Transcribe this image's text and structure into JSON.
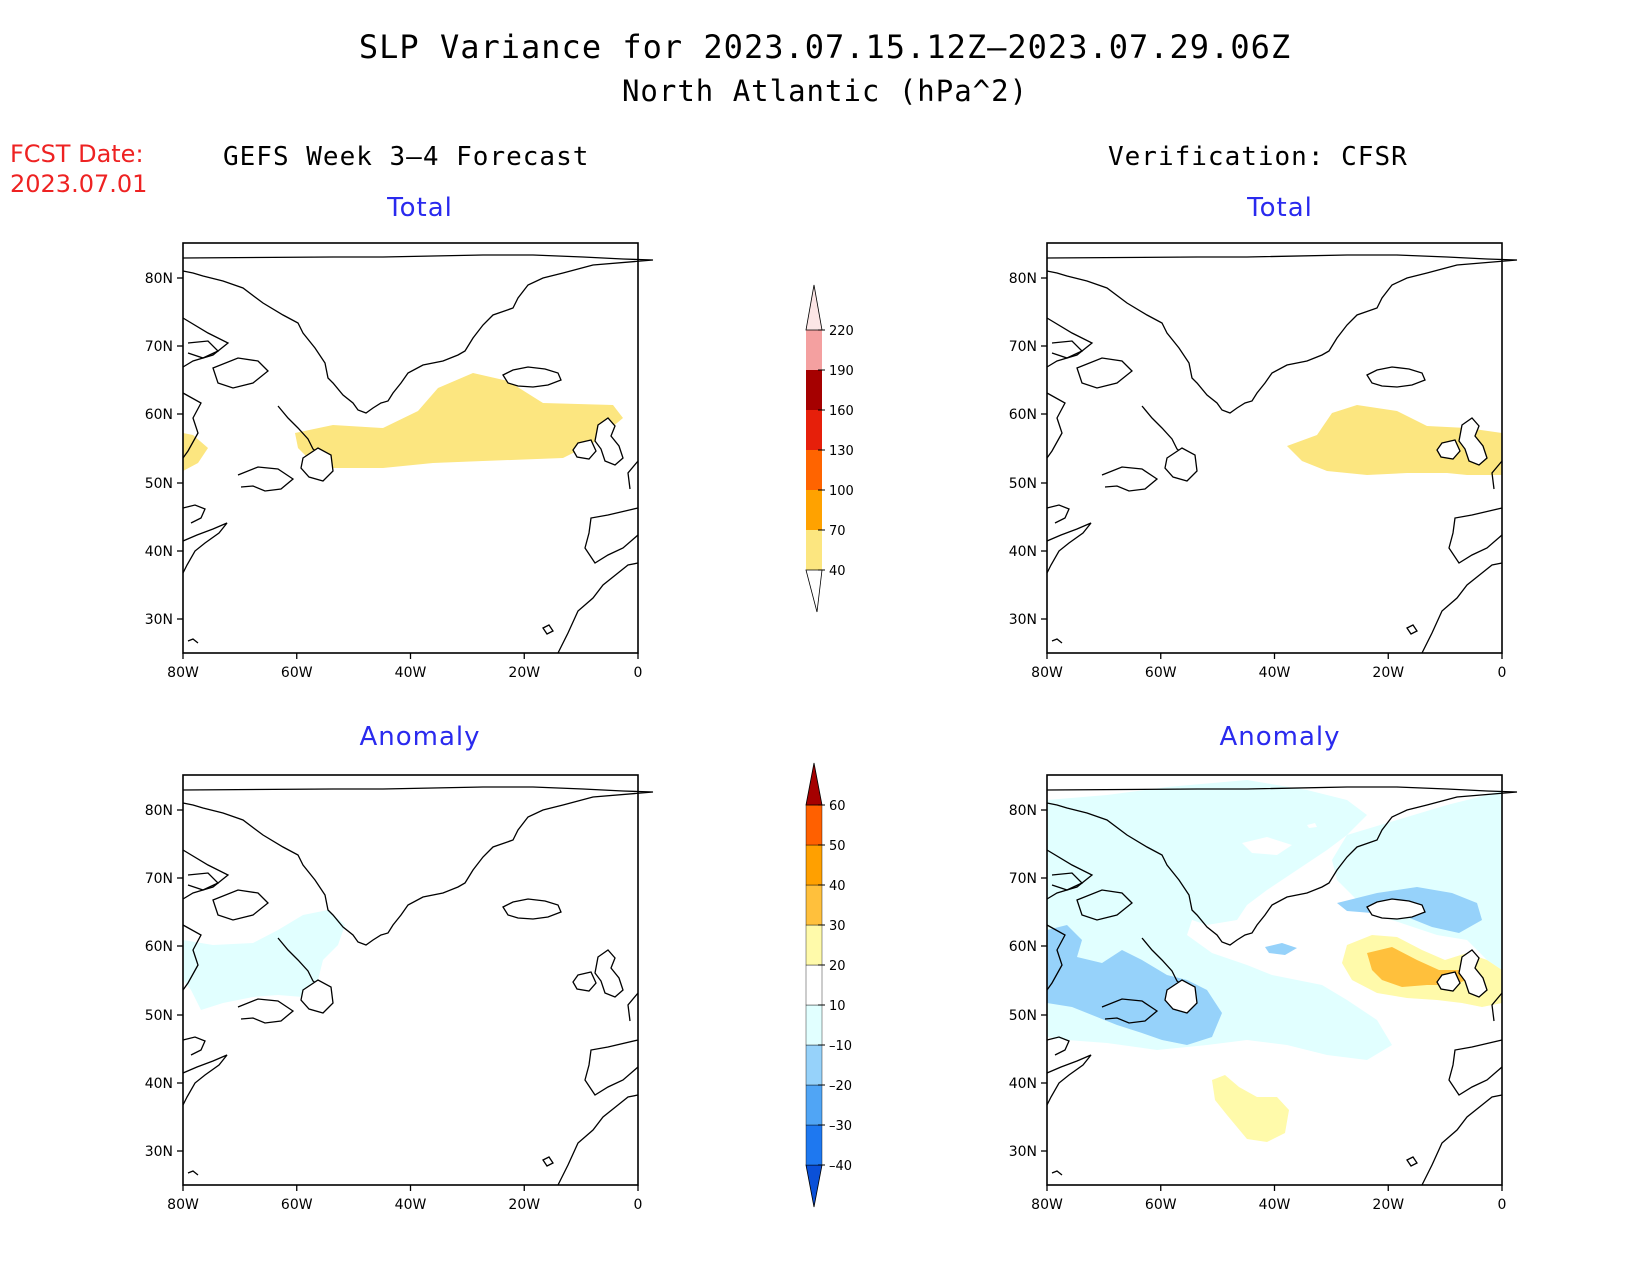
{
  "title_line1": "SLP Variance for 2023.07.15.12Z–2023.07.29.06Z",
  "title_line2": "North Atlantic (hPa^2)",
  "fcst_date_label": "FCST Date:",
  "fcst_date_value": "2023.07.01",
  "columns": {
    "left": "GEFS Week 3–4 Forecast",
    "right": "Verification: CFSR"
  },
  "panel_subtitles": {
    "top_left": "Total",
    "top_right": "Total",
    "bottom_left": "Anomaly",
    "bottom_right": "Anomaly"
  },
  "axes": {
    "lon_labels": [
      "80W",
      "60W",
      "40W",
      "20W",
      "0"
    ],
    "lat_labels": [
      "80N",
      "70N",
      "60N",
      "50N",
      "40N",
      "30N"
    ]
  },
  "colorbars": {
    "total": {
      "levels": [
        "40",
        "70",
        "100",
        "130",
        "160",
        "190",
        "220"
      ],
      "colors": [
        "#fce680",
        "#ffa200",
        "#ff6400",
        "#e61f0a",
        "#a50000",
        "#f4a0a0",
        "#fce6e6"
      ]
    },
    "anomaly": {
      "levels": [
        "-40",
        "-30",
        "-20",
        "-10",
        "10",
        "20",
        "30",
        "40",
        "50",
        "60"
      ],
      "colors": [
        "#0a50d8",
        "#1e78f0",
        "#50a5f5",
        "#96d2fa",
        "#e1ffff",
        "#ffffff",
        "#fffaaa",
        "#ffc03c",
        "#ffa000",
        "#ff6000",
        "#e11400",
        "#a50000"
      ]
    }
  }
}
